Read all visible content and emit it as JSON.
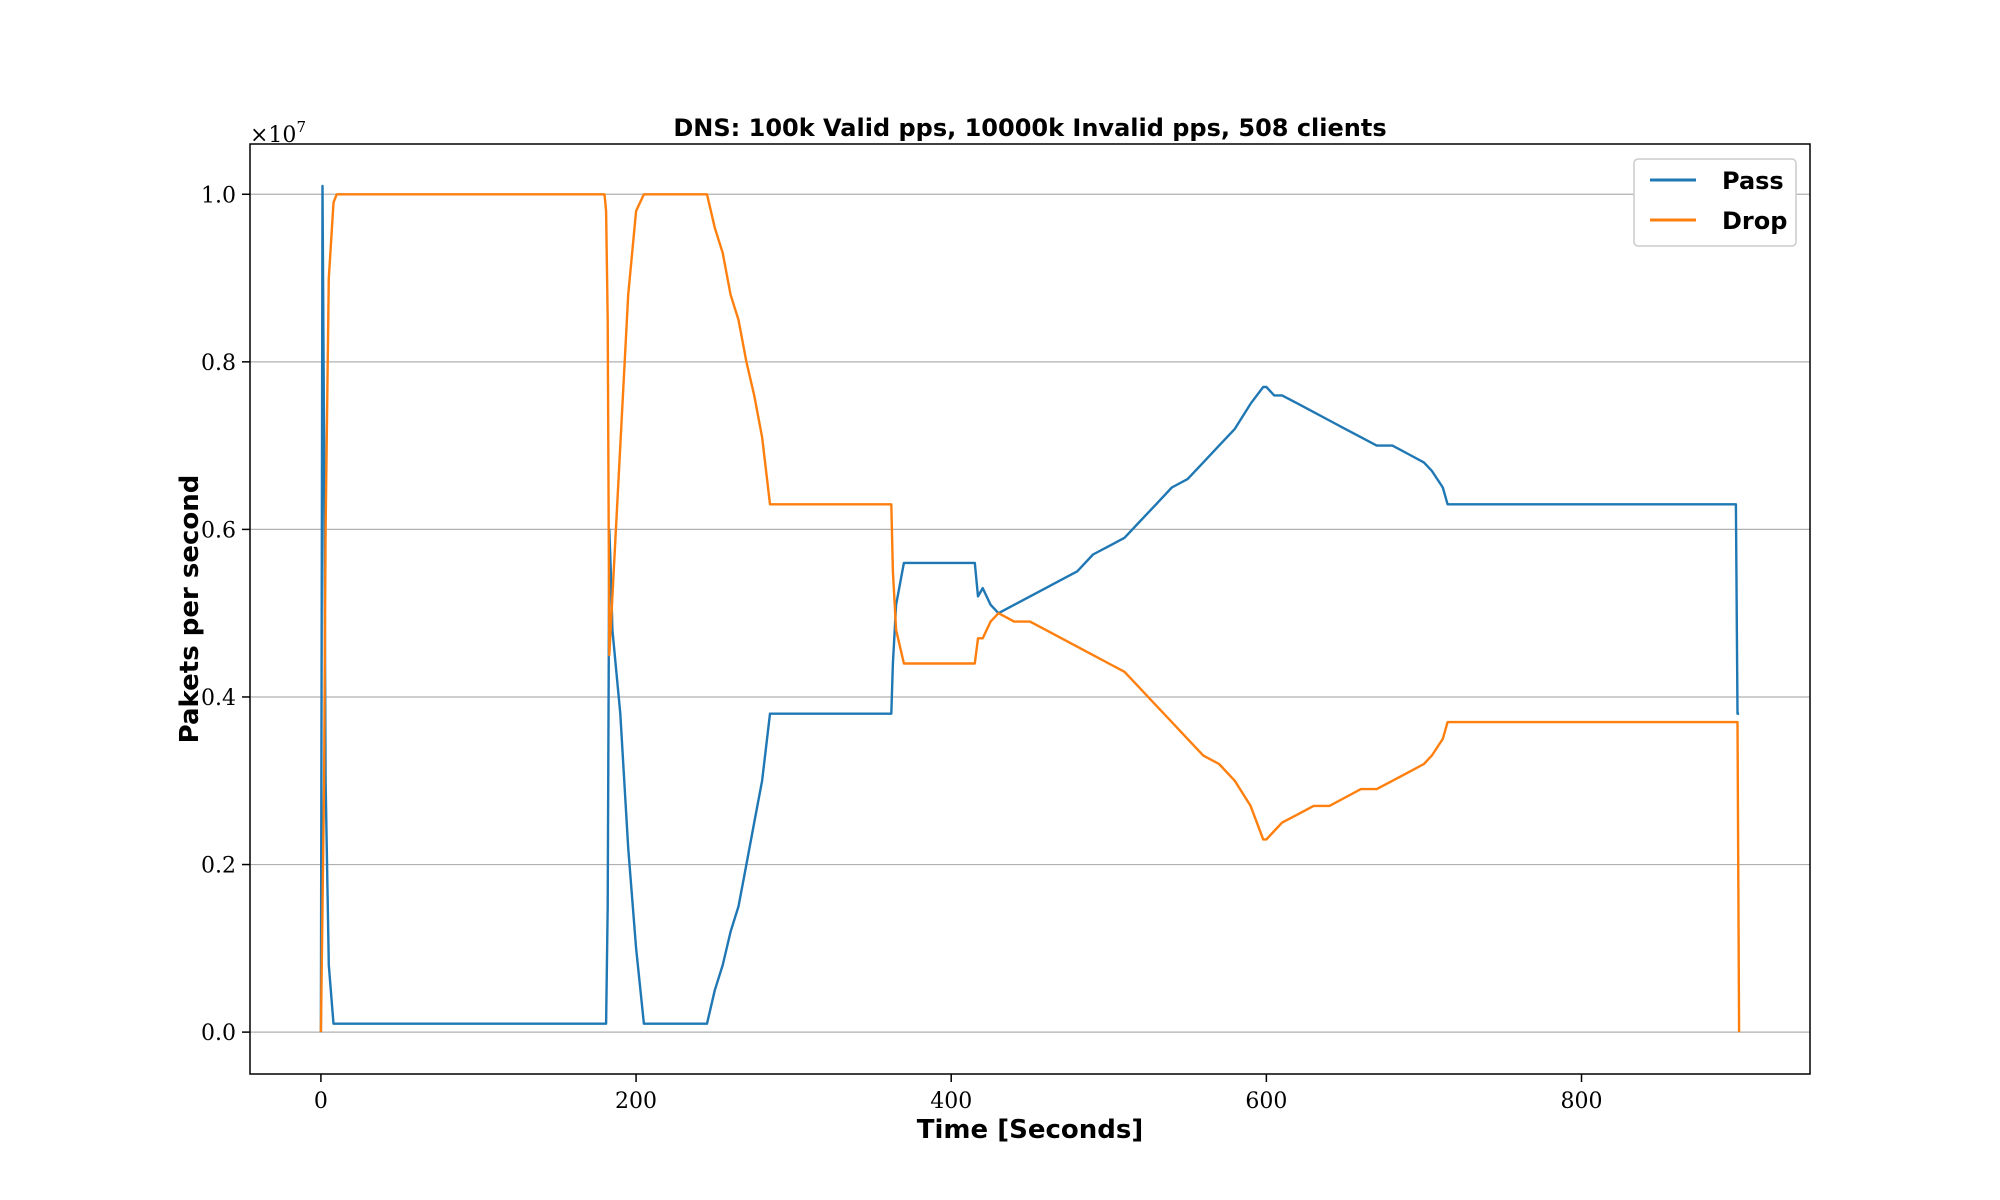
{
  "chart_data": {
    "type": "line",
    "title": "DNS: 100k Valid pps, 10000k Invalid pps, 508 clients",
    "xlabel": "Time [Seconds]",
    "ylabel": "Pakets per second",
    "y_scale_label": "×10^7",
    "y_scale_base": "×10",
    "y_scale_exp": "7",
    "xlim": [
      -45,
      945
    ],
    "ylim": [
      -0.05,
      1.06
    ],
    "xticks": [
      0,
      200,
      400,
      600,
      800
    ],
    "xtick_labels": [
      "0",
      "200",
      "400",
      "600",
      "800"
    ],
    "yticks": [
      0.0,
      0.2,
      0.4,
      0.6,
      0.8,
      1.0
    ],
    "ytick_labels": [
      "0.0",
      "0.2",
      "0.4",
      "0.6",
      "0.8",
      "1.0"
    ],
    "grid": "horizontal",
    "legend_position": "top-right",
    "series": [
      {
        "name": "Pass",
        "color": "#1f77b4",
        "x": [
          0,
          1,
          2,
          3,
          5,
          8,
          10,
          50,
          100,
          150,
          181,
          182,
          183,
          184,
          185,
          190,
          195,
          200,
          205,
          210,
          220,
          240,
          245,
          250,
          255,
          260,
          265,
          270,
          275,
          280,
          285,
          300,
          320,
          340,
          355,
          362,
          363,
          365,
          370,
          380,
          395,
          410,
          415,
          417,
          420,
          425,
          430,
          440,
          450,
          460,
          470,
          480,
          490,
          500,
          510,
          520,
          530,
          540,
          550,
          560,
          570,
          580,
          590,
          598,
          600,
          605,
          610,
          620,
          630,
          640,
          650,
          660,
          670,
          680,
          690,
          700,
          705,
          712,
          715,
          720,
          740,
          760,
          780,
          800,
          820,
          840,
          860,
          880,
          898,
          899,
          900
        ],
        "y": [
          0.0,
          1.01,
          0.7,
          0.3,
          0.08,
          0.01,
          0.01,
          0.01,
          0.01,
          0.01,
          0.01,
          0.15,
          0.6,
          0.55,
          0.48,
          0.38,
          0.22,
          0.1,
          0.01,
          0.01,
          0.01,
          0.01,
          0.01,
          0.05,
          0.08,
          0.12,
          0.15,
          0.2,
          0.25,
          0.3,
          0.38,
          0.38,
          0.38,
          0.38,
          0.38,
          0.38,
          0.44,
          0.51,
          0.56,
          0.56,
          0.56,
          0.56,
          0.56,
          0.52,
          0.53,
          0.51,
          0.5,
          0.51,
          0.52,
          0.53,
          0.54,
          0.55,
          0.57,
          0.58,
          0.59,
          0.61,
          0.63,
          0.65,
          0.66,
          0.68,
          0.7,
          0.72,
          0.75,
          0.77,
          0.77,
          0.76,
          0.76,
          0.75,
          0.74,
          0.73,
          0.72,
          0.71,
          0.7,
          0.7,
          0.69,
          0.68,
          0.67,
          0.65,
          0.63,
          0.63,
          0.63,
          0.63,
          0.63,
          0.63,
          0.63,
          0.63,
          0.63,
          0.63,
          0.63,
          0.38,
          0.38
        ]
      },
      {
        "name": "Drop",
        "color": "#ff7f0e",
        "x": [
          0,
          2,
          3,
          5,
          8,
          10,
          50,
          100,
          150,
          180,
          181,
          182,
          183,
          185,
          190,
          195,
          200,
          205,
          210,
          220,
          240,
          245,
          250,
          255,
          260,
          265,
          270,
          275,
          280,
          285,
          300,
          320,
          340,
          355,
          362,
          363,
          365,
          370,
          380,
          395,
          410,
          415,
          417,
          420,
          425,
          430,
          440,
          450,
          460,
          470,
          480,
          490,
          500,
          510,
          520,
          530,
          540,
          550,
          560,
          570,
          580,
          590,
          598,
          600,
          605,
          610,
          620,
          630,
          640,
          650,
          660,
          670,
          680,
          690,
          700,
          705,
          712,
          715,
          720,
          740,
          760,
          780,
          800,
          820,
          840,
          860,
          880,
          898,
          899,
          900
        ],
        "y": [
          0.0,
          0.3,
          0.6,
          0.9,
          0.99,
          1.0,
          1.0,
          1.0,
          1.0,
          1.0,
          0.98,
          0.85,
          0.45,
          0.52,
          0.7,
          0.88,
          0.98,
          1.0,
          1.0,
          1.0,
          1.0,
          1.0,
          0.96,
          0.93,
          0.88,
          0.85,
          0.8,
          0.76,
          0.71,
          0.63,
          0.63,
          0.63,
          0.63,
          0.63,
          0.63,
          0.55,
          0.48,
          0.44,
          0.44,
          0.44,
          0.44,
          0.44,
          0.47,
          0.47,
          0.49,
          0.5,
          0.49,
          0.49,
          0.48,
          0.47,
          0.46,
          0.45,
          0.44,
          0.43,
          0.41,
          0.39,
          0.37,
          0.35,
          0.33,
          0.32,
          0.3,
          0.27,
          0.23,
          0.23,
          0.24,
          0.25,
          0.26,
          0.27,
          0.27,
          0.28,
          0.29,
          0.29,
          0.3,
          0.31,
          0.32,
          0.33,
          0.35,
          0.37,
          0.37,
          0.37,
          0.37,
          0.37,
          0.37,
          0.37,
          0.37,
          0.37,
          0.37,
          0.37,
          0.37,
          0.0
        ]
      }
    ]
  }
}
